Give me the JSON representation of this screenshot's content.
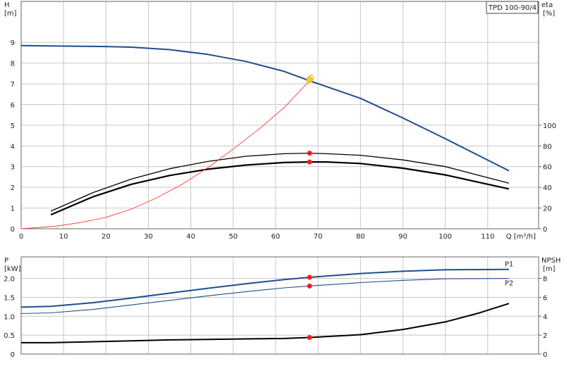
{
  "title_box": "TPD 100-90/4",
  "chart_data": [
    {
      "type": "line",
      "name": "head",
      "x_label": "Q [m³/h]",
      "x_ticks": [
        0,
        10,
        20,
        30,
        40,
        50,
        60,
        70,
        80,
        90,
        100,
        110
      ],
      "xlim": [
        0,
        122
      ],
      "y_left": {
        "label_line1": "H",
        "label_line2": "[m]",
        "ticks": [
          0,
          1,
          2,
          3,
          4,
          5,
          6,
          7,
          8,
          9
        ],
        "ylim": [
          0,
          10.98
        ]
      },
      "y_right": {
        "label_line1": "eta",
        "label_line2": "[%]",
        "ticks": [
          0,
          20,
          40,
          60,
          80,
          100
        ],
        "ylim": [
          0,
          219.6
        ]
      },
      "series": [
        {
          "key": "H",
          "color": "#1f4e8c",
          "width": 2,
          "axis": "left",
          "points": [
            [
              0,
              8.85
            ],
            [
              7,
              8.83
            ],
            [
              20,
              8.8
            ],
            [
              26,
              8.77
            ],
            [
              35,
              8.65
            ],
            [
              44,
              8.42
            ],
            [
              53,
              8.08
            ],
            [
              62,
              7.6
            ],
            [
              68,
              7.15
            ],
            [
              80,
              6.3
            ],
            [
              90,
              5.35
            ],
            [
              100,
              4.35
            ],
            [
              115,
              2.8
            ]
          ]
        },
        {
          "key": "eta_pump",
          "color": "#000000",
          "width": 1.3,
          "axis": "right",
          "points": [
            [
              7,
              17
            ],
            [
              17,
              35
            ],
            [
              26,
              48
            ],
            [
              35,
              58
            ],
            [
              44,
              65
            ],
            [
              53,
              70
            ],
            [
              62,
              72.5
            ],
            [
              68,
              73
            ],
            [
              72,
              72.5
            ],
            [
              80,
              71
            ],
            [
              90,
              66.5
            ],
            [
              100,
              60
            ],
            [
              115,
              44
            ]
          ]
        },
        {
          "key": "eta_total",
          "color": "#000000",
          "width": 2.2,
          "axis": "right",
          "points": [
            [
              7,
              13.5
            ],
            [
              17,
              31
            ],
            [
              26,
              43
            ],
            [
              35,
              51.5
            ],
            [
              44,
              57.5
            ],
            [
              53,
              61.5
            ],
            [
              62,
              64
            ],
            [
              68,
              64.5
            ],
            [
              72,
              64.5
            ],
            [
              80,
              63
            ],
            [
              90,
              58.5
            ],
            [
              100,
              52
            ],
            [
              115,
              38.5
            ]
          ]
        },
        {
          "key": "system",
          "color": "#ff3b30",
          "width": 0.9,
          "axis": "left",
          "points": [
            [
              0,
              0
            ],
            [
              8,
              0.12
            ],
            [
              14,
              0.3
            ],
            [
              20,
              0.55
            ],
            [
              26,
              0.95
            ],
            [
              32,
              1.5
            ],
            [
              38,
              2.15
            ],
            [
              44,
              2.95
            ],
            [
              50,
              3.85
            ],
            [
              56,
              4.8
            ],
            [
              62,
              5.85
            ],
            [
              68,
              7.15
            ],
            [
              69,
              7.3
            ]
          ]
        }
      ],
      "markers": [
        {
          "x": 68,
          "y": 7.2,
          "axis": "left",
          "kind": "duty"
        },
        {
          "x": 68,
          "y": 73,
          "axis": "right",
          "kind": "point"
        },
        {
          "x": 68,
          "y": 64.5,
          "axis": "right",
          "kind": "point"
        }
      ]
    },
    {
      "type": "line",
      "name": "power",
      "x_ticks": [
        0,
        10,
        20,
        30,
        40,
        50,
        60,
        70,
        80,
        90,
        100,
        110
      ],
      "xlim": [
        0,
        122
      ],
      "y_left": {
        "label_line1": "P",
        "label_line2": "[kW]",
        "ticks": [
          "0",
          "0.5",
          "1.0",
          "1.5",
          "2.0"
        ],
        "tick_values": [
          0,
          0.5,
          1.0,
          1.5,
          2.0
        ],
        "ylim": [
          0,
          2.57
        ]
      },
      "y_right": {
        "label_line1": "NPSH",
        "label_line2": "[m]",
        "ticks": [
          0,
          2,
          4,
          6,
          8
        ],
        "ylim": [
          0,
          10.28
        ]
      },
      "series": [
        {
          "key": "P1",
          "label": "P1",
          "color": "#1f4e8c",
          "width": 2,
          "axis": "left",
          "points": [
            [
              0,
              1.24
            ],
            [
              7,
              1.26
            ],
            [
              17,
              1.36
            ],
            [
              26,
              1.48
            ],
            [
              35,
              1.61
            ],
            [
              44,
              1.74
            ],
            [
              53,
              1.86
            ],
            [
              62,
              1.97
            ],
            [
              68,
              2.03
            ],
            [
              80,
              2.13
            ],
            [
              90,
              2.19
            ],
            [
              100,
              2.23
            ],
            [
              115,
              2.24
            ]
          ]
        },
        {
          "key": "P2",
          "label": "P2",
          "color": "#1f4e8c",
          "width": 1.1,
          "axis": "left",
          "points": [
            [
              0,
              1.07
            ],
            [
              7,
              1.09
            ],
            [
              17,
              1.18
            ],
            [
              26,
              1.3
            ],
            [
              35,
              1.42
            ],
            [
              44,
              1.54
            ],
            [
              53,
              1.65
            ],
            [
              62,
              1.75
            ],
            [
              68,
              1.8
            ],
            [
              80,
              1.89
            ],
            [
              90,
              1.95
            ],
            [
              100,
              1.99
            ],
            [
              115,
              2.0
            ]
          ]
        },
        {
          "key": "NPSH",
          "color": "#000000",
          "width": 2,
          "axis": "right",
          "points": [
            [
              0,
              1.2
            ],
            [
              7,
              1.2
            ],
            [
              17,
              1.3
            ],
            [
              26,
              1.4
            ],
            [
              35,
              1.5
            ],
            [
              44,
              1.55
            ],
            [
              53,
              1.6
            ],
            [
              62,
              1.65
            ],
            [
              68,
              1.75
            ],
            [
              80,
              2.05
            ],
            [
              90,
              2.6
            ],
            [
              100,
              3.4
            ],
            [
              108,
              4.35
            ],
            [
              115,
              5.35
            ]
          ]
        }
      ],
      "markers": [
        {
          "x": 68,
          "y": 2.03,
          "axis": "left",
          "kind": "point"
        },
        {
          "x": 68,
          "y": 1.8,
          "axis": "left",
          "kind": "point"
        },
        {
          "x": 68,
          "y": 1.75,
          "axis": "right",
          "kind": "point"
        }
      ]
    }
  ]
}
